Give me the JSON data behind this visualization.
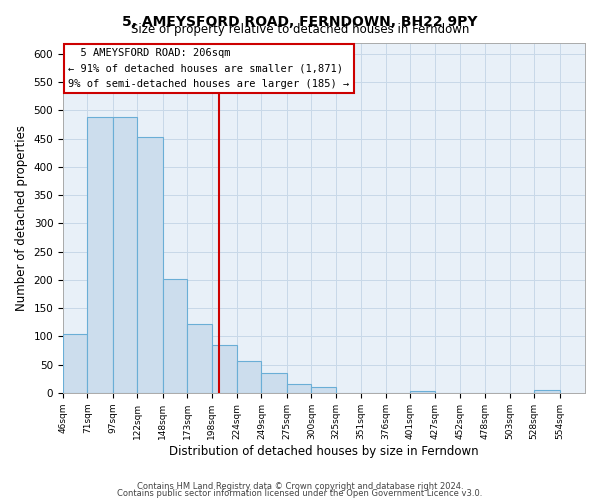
{
  "title": "5, AMEYSFORD ROAD, FERNDOWN, BH22 9PY",
  "subtitle": "Size of property relative to detached houses in Ferndown",
  "xlabel": "Distribution of detached houses by size in Ferndown",
  "ylabel": "Number of detached properties",
  "bar_left_edges": [
    46,
    71,
    97,
    122,
    148,
    173,
    198,
    224,
    249,
    275,
    300,
    325,
    351,
    376,
    401,
    427,
    452,
    478,
    503,
    528
  ],
  "bar_widths": [
    25,
    26,
    25,
    26,
    25,
    25,
    26,
    25,
    26,
    25,
    25,
    26,
    25,
    25,
    26,
    25,
    26,
    25,
    25,
    26
  ],
  "bar_heights": [
    105,
    488,
    488,
    452,
    202,
    122,
    84,
    57,
    36,
    16,
    10,
    0,
    0,
    0,
    3,
    0,
    0,
    0,
    0,
    5
  ],
  "tick_labels": [
    "46sqm",
    "71sqm",
    "97sqm",
    "122sqm",
    "148sqm",
    "173sqm",
    "198sqm",
    "224sqm",
    "249sqm",
    "275sqm",
    "300sqm",
    "325sqm",
    "351sqm",
    "376sqm",
    "401sqm",
    "427sqm",
    "452sqm",
    "478sqm",
    "503sqm",
    "528sqm",
    "554sqm"
  ],
  "tick_positions": [
    46,
    71,
    97,
    122,
    148,
    173,
    198,
    224,
    249,
    275,
    300,
    325,
    351,
    376,
    401,
    427,
    452,
    478,
    503,
    528,
    554
  ],
  "bar_color": "#ccdded",
  "bar_edge_color": "#6aaed6",
  "property_line_x": 206,
  "property_line_color": "#cc0000",
  "annotation_title": "5 AMEYSFORD ROAD: 206sqm",
  "annotation_line1": "← 91% of detached houses are smaller (1,871)",
  "annotation_line2": "9% of semi-detached houses are larger (185) →",
  "annotation_box_color": "#ffffff",
  "annotation_box_edge_color": "#cc0000",
  "ylim": [
    0,
    620
  ],
  "xlim": [
    46,
    580
  ],
  "yticks": [
    0,
    50,
    100,
    150,
    200,
    250,
    300,
    350,
    400,
    450,
    500,
    550,
    600
  ],
  "footer_line1": "Contains HM Land Registry data © Crown copyright and database right 2024.",
  "footer_line2": "Contains public sector information licensed under the Open Government Licence v3.0.",
  "background_color": "#ffffff",
  "plot_bg_color": "#e8f0f8",
  "grid_color": "#c8d8e8"
}
